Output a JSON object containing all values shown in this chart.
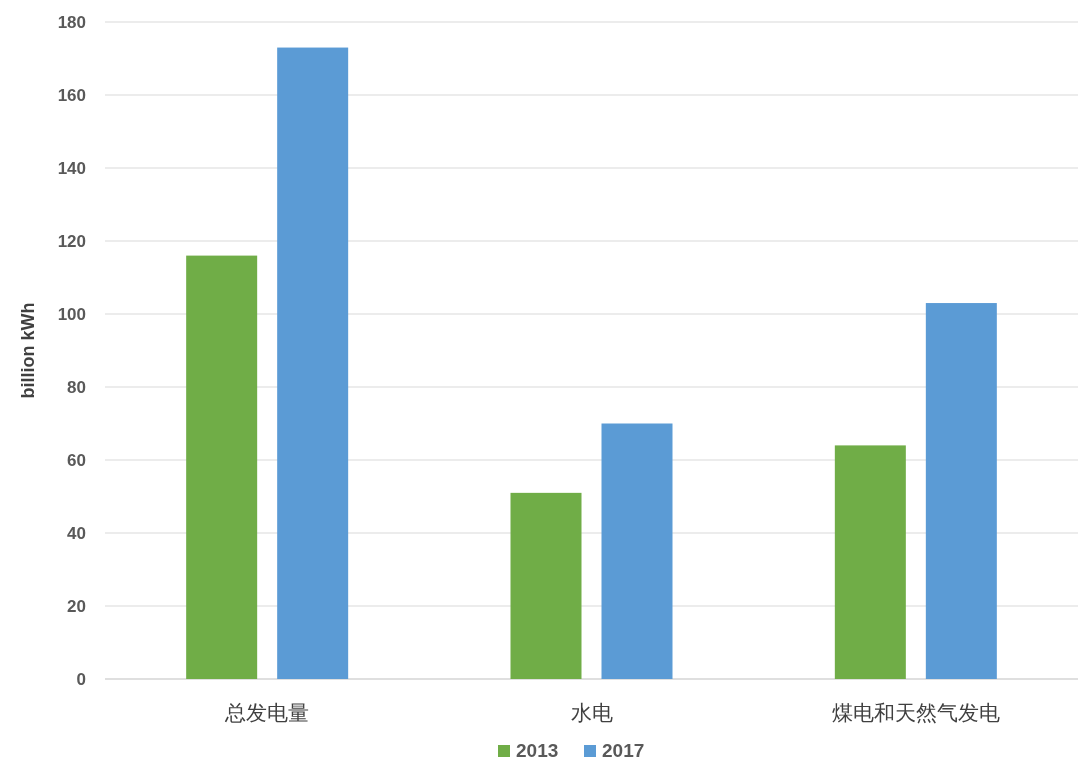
{
  "chart_data": {
    "type": "bar",
    "ylabel": "billion kWh",
    "categories": [
      "总发电量",
      "水电",
      "煤电和天然气发电"
    ],
    "series": [
      {
        "name": "2013",
        "color": "#70ad47",
        "values": [
          116,
          51,
          64
        ]
      },
      {
        "name": "2017",
        "color": "#5b9bd5",
        "values": [
          173,
          70,
          103
        ]
      }
    ],
    "ylim": [
      0,
      180
    ],
    "yticks": [
      0,
      20,
      40,
      60,
      80,
      100,
      120,
      140,
      160,
      180
    ],
    "grid": "y",
    "legend": "bottom"
  }
}
